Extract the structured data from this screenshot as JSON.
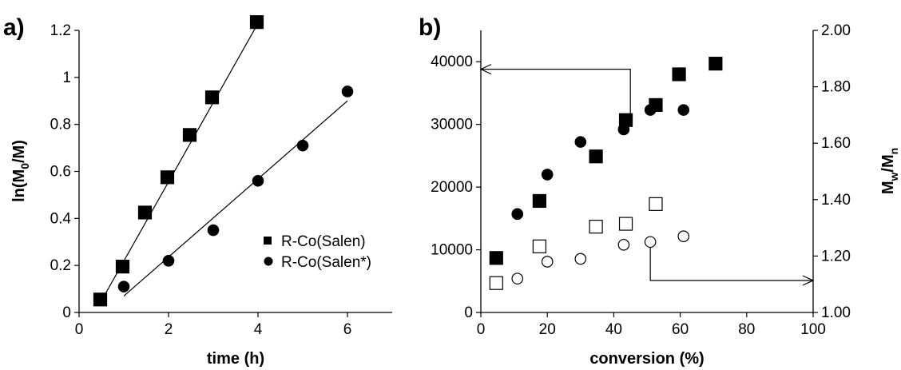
{
  "chart_data": [
    {
      "type": "scatter",
      "panel_label": "a)",
      "xlabel": "time (h)",
      "ylabel": "ln(M0/M)",
      "xlim": [
        0,
        7
      ],
      "ylim": [
        0,
        1.2
      ],
      "xticks": [
        "0",
        "2",
        "4",
        "6"
      ],
      "yticks": [
        "0",
        "0.2",
        "0.4",
        "0.6",
        "0.8",
        "1",
        "1.2"
      ],
      "grid": false,
      "legend_position": "bottom-right",
      "series": [
        {
          "name": "R-Co(Salen)",
          "marker": "square-filled",
          "points": [
            [
              0.5,
              0.05
            ],
            [
              1.0,
              0.19
            ],
            [
              1.5,
              0.42
            ],
            [
              2.0,
              0.57
            ],
            [
              2.5,
              0.75
            ],
            [
              3.0,
              0.91
            ],
            [
              4.0,
              1.23
            ]
          ],
          "fit": [
            [
              0.5,
              0.05
            ],
            [
              4.0,
              1.23
            ]
          ]
        },
        {
          "name": "R-Co(Salen*)",
          "marker": "circle-filled",
          "points": [
            [
              1.0,
              0.11
            ],
            [
              2.0,
              0.22
            ],
            [
              3.0,
              0.35
            ],
            [
              4.0,
              0.56
            ],
            [
              5.0,
              0.71
            ],
            [
              6.0,
              0.94
            ]
          ],
          "fit": [
            [
              1.0,
              0.07
            ],
            [
              6.0,
              0.9
            ]
          ]
        }
      ]
    },
    {
      "type": "scatter",
      "panel_label": "b)",
      "xlabel": "conversion (%)",
      "ylabel_right": "Mw/Mn",
      "xlim": [
        0,
        100
      ],
      "ylim": [
        0,
        45000
      ],
      "y2lim": [
        1.0,
        2.0
      ],
      "xticks": [
        "0",
        "20",
        "40",
        "60",
        "80",
        "100"
      ],
      "yticks": [
        "0",
        "10000",
        "20000",
        "30000",
        "40000"
      ],
      "y2ticks": [
        "1.00",
        "1.20",
        "1.40",
        "1.60",
        "1.80",
        "2.00"
      ],
      "grid": false,
      "series": [
        {
          "marker": "square-filled",
          "axis": "left",
          "points": [
            [
              5,
              8500
            ],
            [
              18,
              17600
            ],
            [
              35,
              24700
            ],
            [
              44,
              30500
            ],
            [
              53,
              32900
            ],
            [
              60,
              37800
            ],
            [
              71,
              39500
            ]
          ]
        },
        {
          "marker": "circle-filled",
          "axis": "left",
          "points": [
            [
              11,
              15700
            ],
            [
              20,
              22000
            ],
            [
              30,
              27200
            ],
            [
              43,
              29200
            ],
            [
              51,
              32300
            ],
            [
              61,
              32300
            ]
          ]
        },
        {
          "marker": "square-open",
          "axis": "right",
          "points": [
            [
              5,
              1.1
            ],
            [
              18,
              1.23
            ],
            [
              35,
              1.3
            ],
            [
              44,
              1.31
            ],
            [
              53,
              1.38
            ]
          ]
        },
        {
          "marker": "circle-open",
          "axis": "right",
          "points": [
            [
              11,
              1.12
            ],
            [
              20,
              1.18
            ],
            [
              30,
              1.19
            ],
            [
              43,
              1.24
            ],
            [
              51,
              1.25
            ],
            [
              61,
              1.27
            ]
          ]
        }
      ],
      "annotations": [
        {
          "kind": "arrow",
          "path": [
            [
              45,
              30500
            ],
            [
              45,
              38800
            ],
            [
              0,
              38800
            ]
          ]
        },
        {
          "kind": "arrow",
          "path": [
            [
              51,
              11200
            ],
            [
              51,
              5100
            ],
            [
              100,
              5100
            ]
          ]
        }
      ]
    }
  ]
}
